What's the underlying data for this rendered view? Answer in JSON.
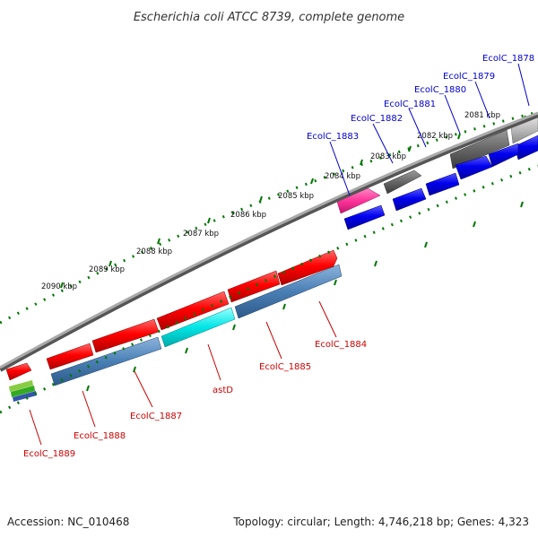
{
  "title": "Escherichia coli ATCC 8739, complete genome",
  "accession": "Accession: NC_010468",
  "topology": "Topology: circular; Length: 4,746,218 bp; Genes: 4,323",
  "colors": {
    "forward_gene": "#ff0000",
    "reverse_gene": "#0000ee",
    "pink_gene": "#ff3399",
    "gray_gene": "#666666",
    "light_gray_gene": "#bbbbbb",
    "steel_gene": "#4a7fb5",
    "cyan_gene": "#00e5e5",
    "tick_green": "#007700",
    "backbone": "#888888"
  },
  "scale_labels": [
    "2081 kbp",
    "2082 kbp",
    "2083 kbp",
    "2084 kbp",
    "2085 kbp",
    "2086 kbp",
    "2087 kbp",
    "2088 kbp",
    "2089 kbp",
    "2090 kbp"
  ],
  "top_labels": [
    "EcolC_1878",
    "EcolC_1879",
    "EcolC_1880",
    "EcolC_1881",
    "EcolC_1882",
    "EcolC_1883"
  ],
  "bottom_labels": [
    "EcolC_1884",
    "EcolC_1885",
    "astD",
    "EcolC_1887",
    "EcolC_1888",
    "EcolC_1889"
  ]
}
